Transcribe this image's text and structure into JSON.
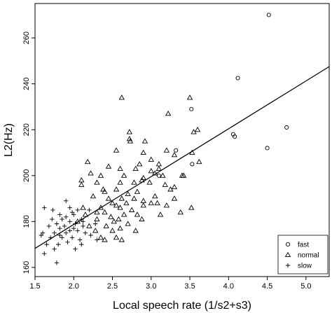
{
  "chart_data": {
    "type": "scatter",
    "xlabel": "Local speech rate (1/s2+s3)",
    "ylabel": "L2(Hz)",
    "xlim": [
      1.5,
      5.3
    ],
    "ylim": [
      156,
      275
    ],
    "x_ticks": [
      1.5,
      2.0,
      2.5,
      3.0,
      3.5,
      4.0,
      4.5,
      5.0
    ],
    "y_ticks": [
      160,
      180,
      200,
      220,
      240,
      260
    ],
    "x_tick_labels": [
      "1.5",
      "2.0",
      "2.5",
      "3.0",
      "3.5",
      "4.0",
      "4.5",
      "5.0"
    ],
    "y_tick_labels": [
      "160",
      "180",
      "200",
      "220",
      "240",
      "260"
    ],
    "legend": {
      "position": "bottom-right",
      "entries": [
        {
          "label": "fast",
          "marker": "circle"
        },
        {
          "label": "normal",
          "marker": "triangle"
        },
        {
          "label": "slow",
          "marker": "plus"
        }
      ]
    },
    "regression_line": {
      "x": [
        1.5,
        5.3
      ],
      "y": [
        168.3,
        247.5
      ]
    },
    "series": [
      {
        "name": "fast",
        "marker": "circle",
        "points": [
          [
            4.52,
            270
          ],
          [
            4.12,
            242.5
          ],
          [
            3.52,
            229
          ],
          [
            4.06,
            218
          ],
          [
            4.08,
            217
          ],
          [
            4.75,
            221
          ],
          [
            4.5,
            212
          ],
          [
            3.32,
            211
          ],
          [
            3.53,
            205
          ],
          [
            3.1,
            200
          ]
        ]
      },
      {
        "name": "normal",
        "marker": "triangle",
        "points": [
          [
            2.62,
            234
          ],
          [
            3.5,
            234
          ],
          [
            3.22,
            227
          ],
          [
            2.72,
            219
          ],
          [
            3.55,
            219
          ],
          [
            2.72,
            216
          ],
          [
            2.73,
            215
          ],
          [
            2.92,
            215
          ],
          [
            3.6,
            220
          ],
          [
            2.9,
            210
          ],
          [
            3.2,
            211
          ],
          [
            3.3,
            209
          ],
          [
            3.0,
            207
          ],
          [
            3.53,
            210
          ],
          [
            2.55,
            211
          ],
          [
            2.18,
            206
          ],
          [
            2.85,
            205
          ],
          [
            3.1,
            205
          ],
          [
            3.62,
            206
          ],
          [
            2.6,
            203
          ],
          [
            2.45,
            204
          ],
          [
            2.8,
            203
          ],
          [
            3.1,
            203
          ],
          [
            3.0,
            202
          ],
          [
            2.22,
            201
          ],
          [
            2.35,
            200
          ],
          [
            2.65,
            200
          ],
          [
            2.9,
            199
          ],
          [
            3.15,
            200
          ],
          [
            3.4,
            200
          ],
          [
            3.42,
            200
          ],
          [
            3.05,
            201
          ],
          [
            2.1,
            198
          ],
          [
            2.3,
            197
          ],
          [
            2.6,
            197
          ],
          [
            2.78,
            197
          ],
          [
            2.98,
            197
          ],
          [
            2.1,
            196
          ],
          [
            2.38,
            194
          ],
          [
            2.55,
            194
          ],
          [
            2.82,
            193
          ],
          [
            3.18,
            196
          ],
          [
            3.3,
            195
          ],
          [
            2.4,
            193
          ],
          [
            2.7,
            192
          ],
          [
            3.05,
            191
          ],
          [
            3.3,
            190
          ],
          [
            2.25,
            191
          ],
          [
            2.45,
            190
          ],
          [
            2.62,
            190
          ],
          [
            2.78,
            190
          ],
          [
            2.9,
            189
          ],
          [
            2.5,
            188
          ],
          [
            2.68,
            188
          ],
          [
            3.0,
            188
          ],
          [
            3.08,
            188
          ],
          [
            2.12,
            186
          ],
          [
            2.35,
            186
          ],
          [
            2.55,
            187
          ],
          [
            2.9,
            187
          ],
          [
            3.2,
            187
          ],
          [
            3.52,
            186
          ],
          [
            2.6,
            186
          ],
          [
            2.75,
            185
          ],
          [
            2.4,
            184
          ],
          [
            2.3,
            184
          ],
          [
            2.15,
            183
          ],
          [
            2.48,
            182
          ],
          [
            2.65,
            183
          ],
          [
            2.82,
            183
          ],
          [
            3.12,
            183
          ],
          [
            3.38,
            184
          ],
          [
            2.3,
            181
          ],
          [
            2.58,
            181
          ],
          [
            2.7,
            179
          ],
          [
            2.88,
            181
          ],
          [
            2.05,
            180
          ],
          [
            2.2,
            178
          ],
          [
            2.42,
            178
          ],
          [
            2.6,
            177
          ],
          [
            2.5,
            176
          ],
          [
            2.8,
            176
          ],
          [
            2.35,
            173
          ],
          [
            2.55,
            173
          ],
          [
            2.4,
            172
          ],
          [
            2.28,
            176
          ],
          [
            2.62,
            172
          ],
          [
            2.88,
            198
          ],
          [
            2.52,
            180
          ],
          [
            3.25,
            194
          ]
        ]
      },
      {
        "name": "slow",
        "marker": "plus",
        "points": [
          [
            1.62,
            186
          ],
          [
            1.95,
            186
          ],
          [
            2.05,
            185
          ],
          [
            1.82,
            183
          ],
          [
            1.9,
            182
          ],
          [
            2.0,
            183
          ],
          [
            1.72,
            181
          ],
          [
            1.85,
            181
          ],
          [
            2.1,
            181
          ],
          [
            1.95,
            180
          ],
          [
            2.02,
            179
          ],
          [
            1.78,
            179
          ],
          [
            1.68,
            178
          ],
          [
            1.88,
            178
          ],
          [
            2.12,
            178
          ],
          [
            1.82,
            177
          ],
          [
            1.95,
            176
          ],
          [
            2.05,
            176
          ],
          [
            1.75,
            175
          ],
          [
            1.9,
            175
          ],
          [
            2.15,
            175
          ],
          [
            1.6,
            175
          ],
          [
            1.7,
            173
          ],
          [
            1.85,
            173
          ],
          [
            1.98,
            173
          ],
          [
            2.08,
            172
          ],
          [
            1.92,
            171
          ],
          [
            1.8,
            170
          ],
          [
            1.65,
            170
          ],
          [
            1.75,
            168
          ],
          [
            2.1,
            170
          ],
          [
            2.22,
            174
          ],
          [
            1.62,
            166
          ],
          [
            1.78,
            162
          ],
          [
            2.2,
            185
          ],
          [
            2.3,
            172
          ],
          [
            1.98,
            184
          ],
          [
            2.12,
            180
          ],
          [
            1.73,
            185
          ],
          [
            2.28,
            179
          ],
          [
            1.9,
            189
          ],
          [
            1.58,
            174
          ],
          [
            2.02,
            168
          ],
          [
            1.82,
            174
          ],
          [
            2.0,
            177
          ]
        ]
      }
    ]
  }
}
